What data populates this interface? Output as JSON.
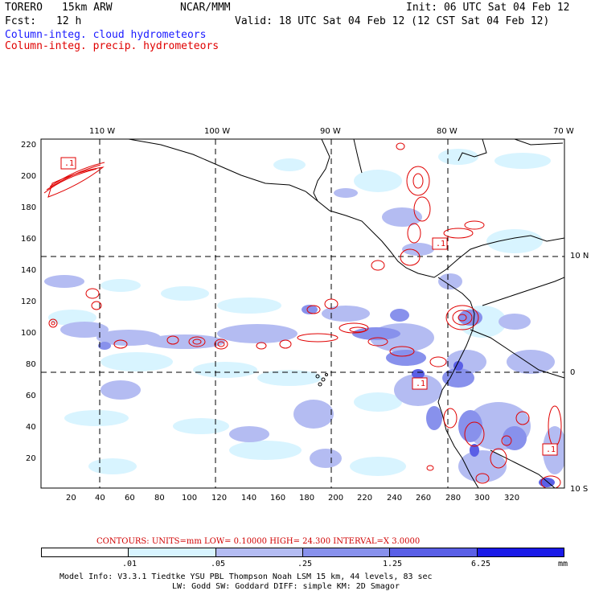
{
  "header": {
    "model": "TORERO",
    "resolution": "15km ARW",
    "center": "NCAR/MMM",
    "init": "Init: 06 UTC Sat 04 Feb 12",
    "fcst_label": "Fcst:",
    "fcst_hours": "12 h",
    "valid": "Valid: 18 UTC Sat 04 Feb 12 (12 CST Sat 04 Feb 12)"
  },
  "fields": {
    "cloud": "Column-integ. cloud hydrometeors",
    "precip": "Column-integ. precip. hydrometeors"
  },
  "map": {
    "x_ticks": [
      "20",
      "40",
      "60",
      "80",
      "100",
      "120",
      "140",
      "160",
      "180",
      "200",
      "220",
      "240",
      "260",
      "280",
      "300",
      "320"
    ],
    "y_ticks": [
      "220",
      "200",
      "180",
      "160",
      "140",
      "120",
      "100",
      "80",
      "60",
      "40",
      "20"
    ],
    "lon_labels": [
      "110 W",
      "100 W",
      "90 W",
      "80 W",
      "70 W"
    ],
    "lat_labels": [
      "10 N",
      "0",
      "10 S"
    ],
    "contour_box_label": ".1"
  },
  "contours_info": {
    "text": "CONTOURS:  UNITS=mm  LOW= 0.10000     HIGH=  24.300     INTERVAL=X  3.0000"
  },
  "colorbar": {
    "units": "mm",
    "levels": [
      ".01",
      ".05",
      ".25",
      "1.25",
      "6.25"
    ],
    "colors": [
      "#ffffff",
      "#d8f4ff",
      "#b4bcf2",
      "#8891ec",
      "#5a5fe6",
      "#1a1ae8"
    ]
  },
  "model_info": {
    "line1": "Model Info: V3.3.1    Tiedtke YSU PBL  Thompson    Noah LSM  15 km,   44 levels,   83 sec",
    "line2": "LW: Godd SW: Goddard DIFF: simple KM: 2D Smagor"
  }
}
